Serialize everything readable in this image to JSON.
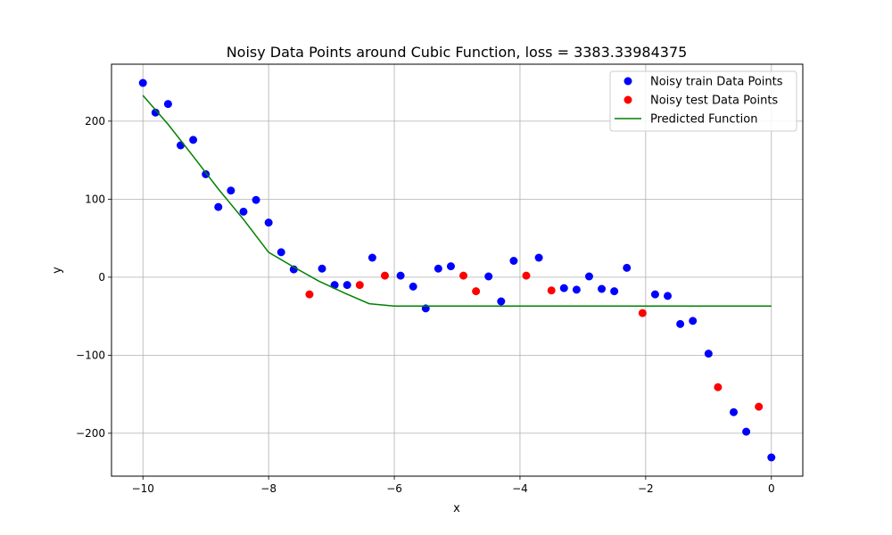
{
  "chart_data": {
    "type": "scatter",
    "title": "Noisy Data Points around Cubic Function, loss = 3383.33984375",
    "xlabel": "x",
    "ylabel": "y",
    "xlim": [
      -10.5,
      0.5
    ],
    "ylim": [
      -255,
      273
    ],
    "x_ticks": [
      -10,
      -8,
      -6,
      -4,
      -2,
      0
    ],
    "x_tick_labels": [
      "−10",
      "−8",
      "−6",
      "−4",
      "−2",
      "0"
    ],
    "y_ticks": [
      -200,
      -100,
      0,
      100,
      200
    ],
    "y_tick_labels": [
      "−200",
      "−100",
      "0",
      "100",
      "200"
    ],
    "grid": true,
    "legend_position": "top-right",
    "series": [
      {
        "name": "Noisy train Data Points",
        "kind": "scatter",
        "color": "#0000ff",
        "x": [
          -10,
          -9.8,
          -9.6,
          -9.4,
          -9.2,
          -9.0,
          -8.8,
          -8.6,
          -8.4,
          -8.2,
          -8.0,
          -7.8,
          -7.6,
          -7.15,
          -6.95,
          -6.75,
          -6.35,
          -5.9,
          -5.7,
          -5.5,
          -5.3,
          -5.1,
          -4.5,
          -4.3,
          -4.1,
          -3.7,
          -3.3,
          -3.1,
          -2.9,
          -2.7,
          -2.5,
          -2.3,
          -1.85,
          -1.65,
          -1.45,
          -1.25,
          -1.0,
          -0.6,
          -0.4,
          0.0
        ],
        "y": [
          249,
          211,
          222,
          169,
          176,
          132,
          90,
          111,
          84,
          99,
          70,
          32,
          10,
          11,
          -10,
          -10,
          25,
          2,
          -12,
          -40,
          11,
          14,
          1,
          -31,
          21,
          25,
          -14,
          -16,
          1,
          -15,
          -18,
          12,
          -22,
          -24,
          -60,
          -56,
          -98,
          -173,
          -198,
          -231
        ]
      },
      {
        "name": "Noisy test Data Points",
        "kind": "scatter",
        "color": "#ff0000",
        "x": [
          -7.35,
          -6.55,
          -6.15,
          -4.9,
          -4.7,
          -3.9,
          -3.5,
          -2.05,
          -0.85,
          -0.2
        ],
        "y": [
          -22,
          -10,
          2,
          2,
          -18,
          2,
          -17,
          -46,
          -141,
          -166
        ]
      },
      {
        "name": "Predicted Function",
        "kind": "line",
        "color": "#008000",
        "x": [
          -10,
          -9.6,
          -9.2,
          -8.8,
          -8.4,
          -8.0,
          -7.6,
          -7.2,
          -6.8,
          -6.4,
          -6.0,
          -5.6,
          -5.2,
          -4.8,
          -4.4,
          -4.0,
          -3.6,
          -3.2,
          -2.8,
          -2.4,
          -2.0,
          -1.6,
          -1.2,
          -0.8,
          -0.4,
          0.0
        ],
        "y": [
          233,
          196,
          155,
          113,
          74,
          32,
          13,
          -5,
          -20,
          -34,
          -37,
          -37,
          -37,
          -37,
          -37,
          -37,
          -37,
          -37,
          -37,
          -37,
          -37,
          -37,
          -37,
          -37,
          -37,
          -37
        ]
      }
    ]
  }
}
